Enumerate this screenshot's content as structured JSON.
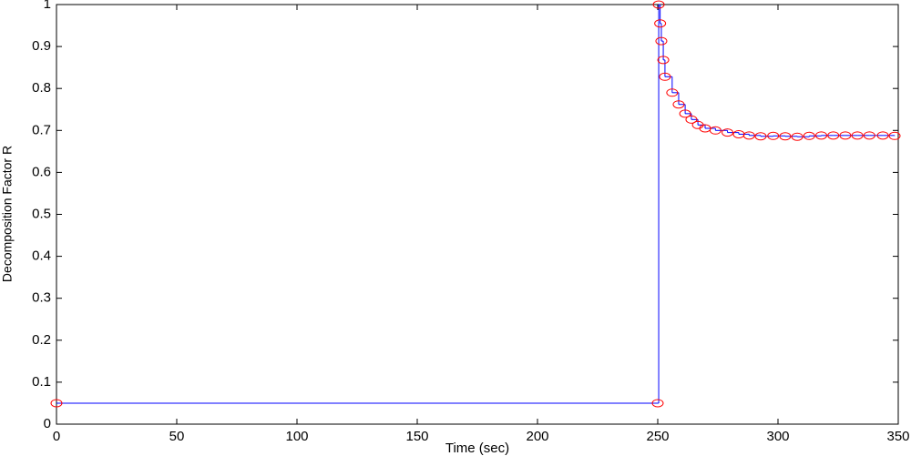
{
  "chart_data": {
    "type": "line",
    "drawstyle": "steps-post",
    "marker": "circle",
    "line_color": "#0000ff",
    "marker_color": "#ff0000",
    "xlabel": "Time (sec)",
    "ylabel": "Decomposition Factor R",
    "x": [
      0,
      250,
      250.4,
      251,
      251.5,
      252.3,
      253,
      256,
      258.7,
      261.4,
      264,
      266.7,
      269.7,
      274,
      279,
      283.7,
      288,
      292.8,
      298,
      303,
      308,
      313,
      318,
      323,
      328,
      333,
      338,
      343.6,
      348.5
    ],
    "values": [
      0.05,
      0.05,
      1.0,
      0.955,
      0.913,
      0.868,
      0.828,
      0.79,
      0.762,
      0.74,
      0.726,
      0.713,
      0.705,
      0.7,
      0.695,
      0.691,
      0.688,
      0.686,
      0.687,
      0.686,
      0.685,
      0.687,
      0.688,
      0.688,
      0.688,
      0.688,
      0.688,
      0.688,
      0.687
    ],
    "xlim": [
      0,
      350
    ],
    "xticks": [
      0,
      50,
      100,
      150,
      200,
      250,
      300,
      350
    ],
    "ylim": [
      0,
      1
    ],
    "yticks": [
      0,
      0.1,
      0.2,
      0.3,
      0.4,
      0.5,
      0.6,
      0.7,
      0.8,
      0.9,
      1
    ],
    "grid": false
  }
}
